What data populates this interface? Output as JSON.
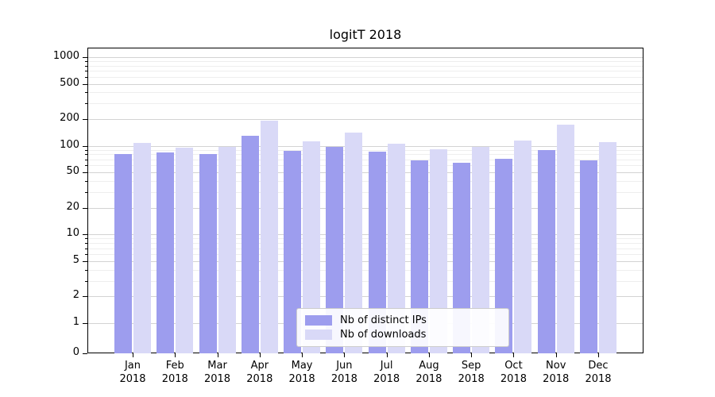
{
  "chart_data": {
    "type": "bar",
    "title": "logitT 2018",
    "categories": [
      "Jan",
      "Feb",
      "Mar",
      "Apr",
      "May",
      "Jun",
      "Jul",
      "Aug",
      "Sep",
      "Oct",
      "Nov",
      "Dec"
    ],
    "year": "2018",
    "series": [
      {
        "name": "Nb of distinct IPs",
        "color": "#9d9dee",
        "values": [
          80,
          85,
          80,
          130,
          88,
          97,
          86,
          68,
          65,
          72,
          89,
          68
        ]
      },
      {
        "name": "Nb of downloads",
        "color": "#d9d9f7",
        "values": [
          108,
          95,
          98,
          192,
          112,
          140,
          106,
          92,
          98,
          115,
          172,
          110
        ]
      }
    ],
    "yticks": [
      0,
      1,
      2,
      5,
      10,
      20,
      50,
      100,
      200,
      500,
      1000
    ],
    "yscale": "symlog",
    "ylim": [
      0,
      1276
    ],
    "xlabel": "",
    "ylabel": "",
    "grid": true,
    "legend_position": "lower center"
  }
}
